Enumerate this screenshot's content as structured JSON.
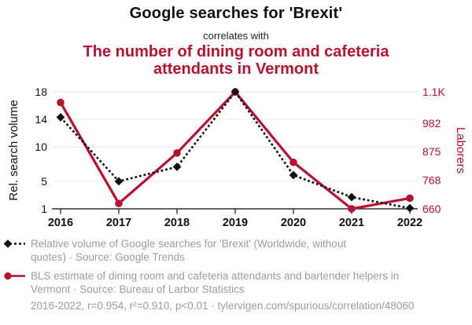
{
  "header": {
    "title": "Google searches for 'Brexit'",
    "subtitle": "correlates with",
    "secondary_title": "The number of dining room and cafeteria attendants in Vermont"
  },
  "chart_data": {
    "type": "line",
    "x": [
      "2016",
      "2017",
      "2018",
      "2019",
      "2020",
      "2021",
      "2022"
    ],
    "series": [
      {
        "name": "Relative volume of Google searches for 'Brexit'",
        "axis": "right_axis",
        "color": "#111111",
        "marker": "diamond",
        "line_style": "dashed",
        "values_axis": "left",
        "values": [
          14.3,
          5.0,
          7.1,
          18.0,
          5.9,
          2.7,
          1.1
        ]
      },
      {
        "name": "BLS estimate of dining room and cafeteria attendants and bartender helpers in Vermont",
        "axis": "right_axis",
        "color": "#b91131",
        "marker": "circle",
        "line_style": "solid",
        "values_axis": "right",
        "values": [
          1060,
          680,
          870,
          1100,
          835,
          660,
          700
        ]
      }
    ],
    "left_axis": {
      "label": "Rel. search volume",
      "range": [
        1,
        18
      ],
      "ticks": [
        1,
        5,
        10,
        14,
        18
      ],
      "tick_labels": [
        "1",
        "5",
        "10",
        "14",
        "18"
      ]
    },
    "right_axis": {
      "label": "Laborers",
      "range": [
        660,
        1100
      ],
      "ticks": [
        660,
        768,
        875,
        982,
        1100
      ],
      "tick_labels": [
        "660",
        "768",
        "875",
        "982",
        "1.1K"
      ]
    },
    "grid": true,
    "legend_position": "bottom",
    "title": "Google searches for 'Brexit' correlates with the number of dining room and cafeteria attendants in Vermont"
  },
  "legend": {
    "items": [
      {
        "marker": "diamond-dashed",
        "color": "#111111",
        "label": "Relative volume of Google searches for 'Brexit' (Worldwide, without quotes) · Source: Google Trends"
      },
      {
        "marker": "circle-solid",
        "color": "#b91131",
        "label": "BLS estimate of dining room and cafeteria attendants and bartender helpers in Vermont · Source: Bureau of Larbor Statistics"
      }
    ]
  },
  "footer": {
    "text": "2016-2022, r=0.954, r²=0.910, p<0.01 · tylervigen.com/spurious/correlation/48060"
  },
  "colors": {
    "accent_red": "#b91131",
    "series_black": "#111111",
    "muted_text": "#9c9c9c",
    "grid": "#ececec",
    "axis": "#333333"
  }
}
